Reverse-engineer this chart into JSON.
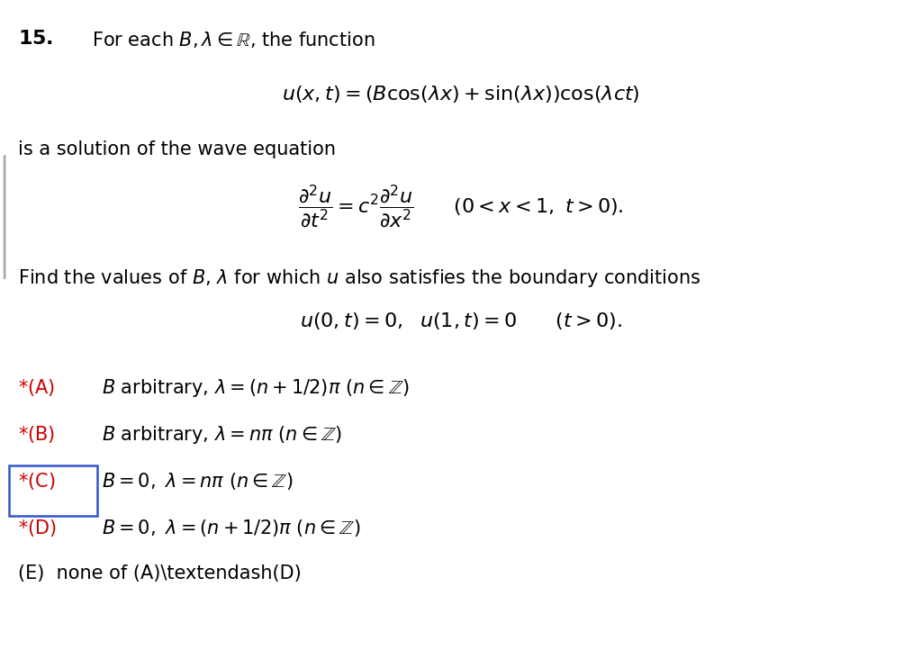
{
  "background_color": "#ffffff",
  "title_number": "15.",
  "title_text": "For each $B, \\lambda \\in \\mathbb{R}$, the function",
  "equation1": "$u(x,t) = (B\\cos(\\lambda x) + \\sin(\\lambda x))\\cos(\\lambda ct)$",
  "text2": "is a solution of the wave equation",
  "equation2": "$\\dfrac{\\partial^2 u}{\\partial t^2} = c^2\\dfrac{\\partial^2 u}{\\partial x^2} \\qquad (0 < x < 1,\\ t > 0).$",
  "text3": "Find the values of $B$, $\\lambda$ for which $u$ also satisfies the boundary conditions",
  "equation3": "$u(0,t) = 0, \\ \\ u(1,t) = 0 \\qquad (t > 0).$",
  "optionA_star": "*(A)",
  "optionA_text": "$B$ arbitrary, $\\lambda = (n+1/2)\\pi$ $(n \\in \\mathbb{Z})$",
  "optionB_star": "*(B)",
  "optionB_text": "$B$ arbitrary, $\\lambda = n\\pi$ $(n \\in \\mathbb{Z})$",
  "optionC_star": "*(C)",
  "optionC_text": "$B = 0, \\ \\lambda = n\\pi$ $(n \\in \\mathbb{Z})$",
  "optionD_star": "*(D)",
  "optionD_text": "$B = 0, \\ \\lambda = (n+1/2)\\pi$ $(n \\in \\mathbb{Z})$",
  "optionE_text": "(E)  none of (A)–(D)",
  "star_color": "#cc0000",
  "box_color": "#3355cc",
  "text_color": "#000000",
  "left_bar_color": "#888888",
  "font_size_main": 15,
  "font_size_title": 15,
  "font_size_eq": 16,
  "font_size_options": 15
}
